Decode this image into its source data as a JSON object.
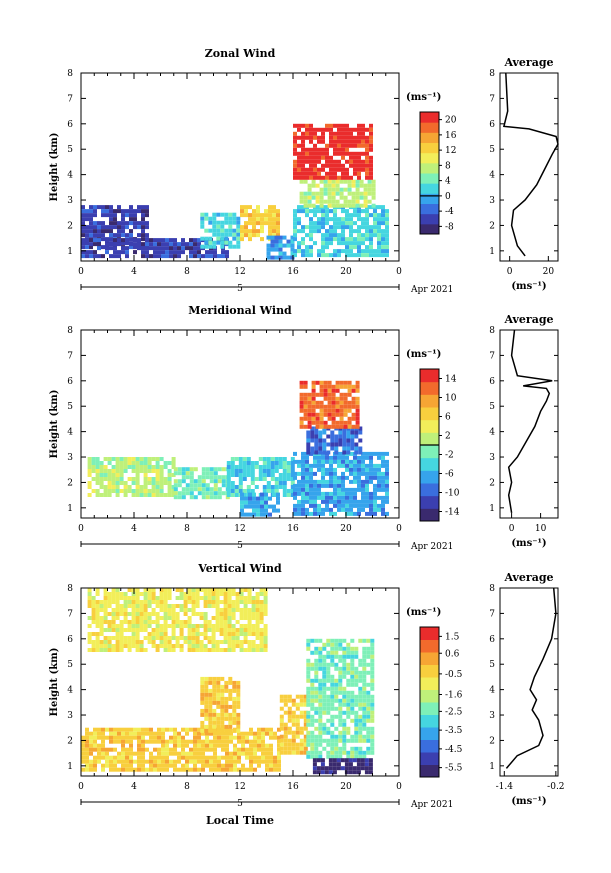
{
  "colors": [
    "#3a2a6e",
    "#3b3fb0",
    "#3a6ede",
    "#36a4ec",
    "#45d6e0",
    "#7ef0b8",
    "#bff07a",
    "#f2ee5a",
    "#f8cf3e",
    "#f6a534",
    "#f26a2c",
    "#ea2c2c"
  ],
  "chart_data": [
    {
      "type": "heatmap",
      "title": "Zonal Wind",
      "ylabel": "Height (km)",
      "xticks": [
        "0",
        "4",
        "8",
        "12",
        "16",
        "20",
        "0"
      ],
      "date_tick": "5",
      "date_label": "Apr 2021",
      "xlim": [
        0,
        24
      ],
      "ylim": [
        0.6,
        8
      ],
      "yticks": [
        "1",
        "2",
        "3",
        "4",
        "5",
        "6",
        "7",
        "8"
      ],
      "colorbar": {
        "unit": "(ms⁻¹)",
        "range": [
          -10,
          22
        ],
        "ticks": [
          "20",
          "16",
          "12",
          "8",
          "4",
          "0",
          "-4",
          "-8"
        ],
        "zero_line": 0
      },
      "blobs": [
        {
          "x": [
            0,
            5
          ],
          "y": [
            1.2,
            2.8
          ],
          "color": 1
        },
        {
          "x": [
            0,
            11
          ],
          "y": [
            0.8,
            1.5
          ],
          "color": 1
        },
        {
          "x": [
            9,
            12
          ],
          "y": [
            1.2,
            2.5
          ],
          "color": 4
        },
        {
          "x": [
            12,
            15
          ],
          "y": [
            1.5,
            2.8
          ],
          "color": 8
        },
        {
          "x": [
            14,
            16
          ],
          "y": [
            0.8,
            1.6
          ],
          "color": 3
        },
        {
          "x": [
            16,
            23
          ],
          "y": [
            0.8,
            2.8
          ],
          "color": 4
        },
        {
          "x": [
            16.5,
            22
          ],
          "y": [
            2.8,
            3.8
          ],
          "color": 6
        },
        {
          "x": [
            16,
            22
          ],
          "y": [
            3.8,
            6.0
          ],
          "color": 11
        }
      ],
      "avg": {
        "title": "Average",
        "xticks": [
          "0",
          "20"
        ],
        "xlim": [
          -5,
          25
        ],
        "xlabel": "(ms⁻¹)",
        "profile": {
          "x": [
            8,
            4,
            1,
            2,
            8,
            14,
            18,
            22,
            25,
            24,
            10,
            -3,
            -1,
            -2
          ],
          "y": [
            0.8,
            1.2,
            2.0,
            2.6,
            3.0,
            3.6,
            4.2,
            4.8,
            5.2,
            5.5,
            5.8,
            5.9,
            6.5,
            8.0
          ]
        }
      }
    },
    {
      "type": "heatmap",
      "title": "Meridional Wind",
      "ylabel": "Height (km)",
      "xticks": [
        "0",
        "4",
        "8",
        "12",
        "16",
        "20",
        "0"
      ],
      "date_tick": "5",
      "date_label": "Apr 2021",
      "xlim": [
        0,
        24
      ],
      "ylim": [
        0.6,
        8
      ],
      "yticks": [
        "1",
        "2",
        "3",
        "4",
        "5",
        "6",
        "7",
        "8"
      ],
      "colorbar": {
        "unit": "(ms⁻¹)",
        "range": [
          -16,
          16
        ],
        "ticks": [
          "14",
          "10",
          "6",
          "2",
          "-2",
          "-6",
          "-10",
          "-14"
        ],
        "zero_line": 0
      },
      "blobs": [
        {
          "x": [
            0.5,
            7
          ],
          "y": [
            1.5,
            3.0
          ],
          "color": 6
        },
        {
          "x": [
            7,
            11
          ],
          "y": [
            1.4,
            2.6
          ],
          "color": 5
        },
        {
          "x": [
            11,
            16
          ],
          "y": [
            1.5,
            3.0
          ],
          "color": 4
        },
        {
          "x": [
            12,
            15
          ],
          "y": [
            0.8,
            1.6
          ],
          "color": 3
        },
        {
          "x": [
            16,
            23
          ],
          "y": [
            0.8,
            3.2
          ],
          "color": 3
        },
        {
          "x": [
            17,
            21
          ],
          "y": [
            3.2,
            4.2
          ],
          "color": 2
        },
        {
          "x": [
            16.5,
            21
          ],
          "y": [
            4.2,
            6.0
          ],
          "color": 10
        }
      ],
      "avg": {
        "title": "Average",
        "xticks": [
          "0",
          "10"
        ],
        "xlim": [
          -4,
          16
        ],
        "xlabel": "(ms⁻¹)",
        "profile": {
          "x": [
            0,
            -1,
            0,
            -1,
            2,
            5,
            8,
            10,
            12,
            13,
            12,
            4,
            14,
            2,
            0,
            1
          ],
          "y": [
            0.8,
            1.5,
            2.0,
            2.6,
            3.0,
            3.6,
            4.2,
            4.8,
            5.2,
            5.5,
            5.7,
            5.8,
            6.0,
            6.2,
            7.0,
            8.0
          ]
        }
      }
    },
    {
      "type": "heatmap",
      "title": "Vertical Wind",
      "ylabel": "Height (km)",
      "xlabel": "Local Time",
      "xticks": [
        "0",
        "4",
        "8",
        "12",
        "16",
        "20",
        "0"
      ],
      "date_tick": "5",
      "date_label": "Apr 2021",
      "xlim": [
        0,
        24
      ],
      "ylim": [
        0.6,
        8
      ],
      "yticks": [
        "1",
        "2",
        "3",
        "4",
        "5",
        "6",
        "7",
        "8"
      ],
      "colorbar": {
        "unit": "(ms⁻¹)",
        "range": [
          -6,
          2
        ],
        "ticks": [
          "1.5",
          "0.6",
          "-0.5",
          "-1.6",
          "-2.5",
          "-3.5",
          "-4.5",
          "-5.5"
        ]
      },
      "blobs": [
        {
          "x": [
            0,
            15
          ],
          "y": [
            0.8,
            2.5
          ],
          "color": 8
        },
        {
          "x": [
            0.5,
            14
          ],
          "y": [
            5.5,
            8.0
          ],
          "color": 7
        },
        {
          "x": [
            9,
            12
          ],
          "y": [
            2.4,
            4.5
          ],
          "color": 8
        },
        {
          "x": [
            15,
            17
          ],
          "y": [
            1.5,
            3.8
          ],
          "color": 8
        },
        {
          "x": [
            17,
            22
          ],
          "y": [
            1.4,
            6.0
          ],
          "color": 5
        },
        {
          "x": [
            17.5,
            22
          ],
          "y": [
            0.8,
            1.3
          ],
          "color": 0
        }
      ],
      "avg": {
        "title": "Average",
        "xticks": [
          "-1.4",
          "-0.2"
        ],
        "xlim": [
          -1.5,
          -0.15
        ],
        "xlabel": "(ms⁻¹)",
        "profile": {
          "x": [
            -1.35,
            -1.1,
            -0.6,
            -0.5,
            -0.6,
            -0.75,
            -0.65,
            -0.8,
            -0.7,
            -0.5,
            -0.3,
            -0.2,
            -0.25
          ],
          "y": [
            0.9,
            1.4,
            1.8,
            2.2,
            2.8,
            3.2,
            3.6,
            4.0,
            4.5,
            5.2,
            6.0,
            7.0,
            8.0
          ]
        }
      }
    }
  ]
}
